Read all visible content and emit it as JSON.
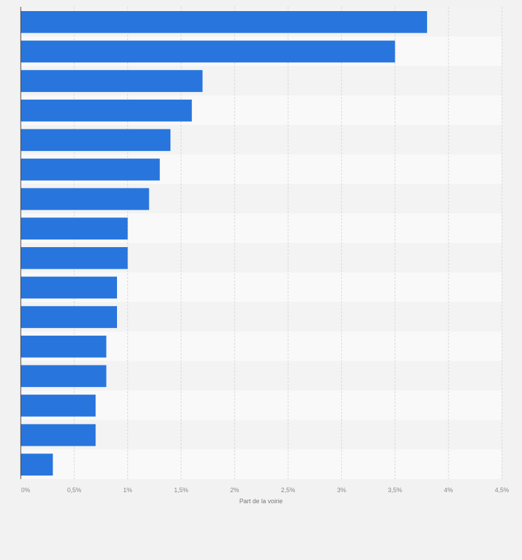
{
  "chart_data": {
    "type": "bar",
    "orientation": "horizontal",
    "title": "",
    "xlabel": "Part de la voirie",
    "ylabel": "",
    "categories": [
      "",
      "",
      "",
      "",
      "",
      "",
      "",
      "",
      "",
      "",
      "",
      "",
      "",
      "",
      "",
      ""
    ],
    "values": [
      3.8,
      3.5,
      1.7,
      1.6,
      1.4,
      1.3,
      1.2,
      1.0,
      1.0,
      0.9,
      0.9,
      0.8,
      0.8,
      0.7,
      0.7,
      0.3
    ],
    "xlim": [
      0,
      4.5
    ],
    "xticks": [
      0,
      0.5,
      1,
      1.5,
      2,
      2.5,
      3,
      3.5,
      4,
      4.5
    ],
    "xtick_labels": [
      "0%",
      "0,5%",
      "1%",
      "1,5%",
      "2%",
      "2,5%",
      "3%",
      "3,5%",
      "4%",
      "4,5%"
    ],
    "grid": true,
    "bar_color": "#2876dd"
  }
}
